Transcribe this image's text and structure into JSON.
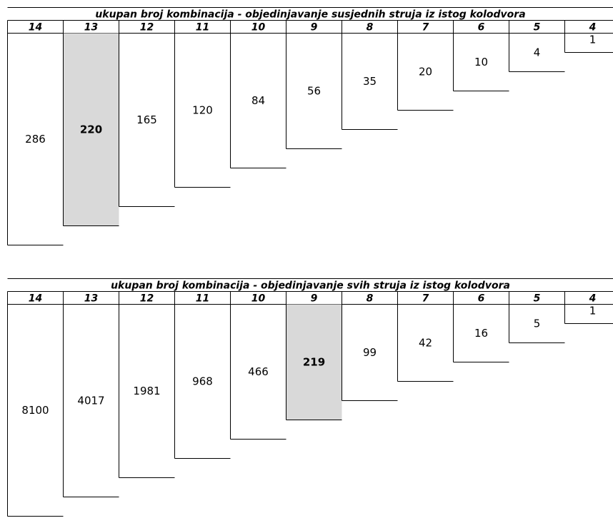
{
  "style": {
    "highlight_fill": "#d9d9d9",
    "line_color": "#000000",
    "background": "#ffffff"
  },
  "chart_data": [
    {
      "type": "table",
      "title": "ukupan broj kombinacija - objedinjavanje susjednih struja iz istog kolodvora",
      "categories": [
        "14",
        "13",
        "12",
        "11",
        "10",
        "9",
        "8",
        "7",
        "6",
        "5",
        "4"
      ],
      "values": [
        286,
        220,
        165,
        120,
        84,
        56,
        35,
        20,
        10,
        4,
        1
      ],
      "highlight": "13"
    },
    {
      "type": "table",
      "title": "ukupan broj kombinacija - objedinjavanje svih struja iz istog kolodvora",
      "categories": [
        "14",
        "13",
        "12",
        "11",
        "10",
        "9",
        "8",
        "7",
        "6",
        "5",
        "4"
      ],
      "values": [
        8100,
        4017,
        1981,
        968,
        466,
        219,
        99,
        42,
        16,
        5,
        1
      ],
      "highlight": "9"
    }
  ]
}
